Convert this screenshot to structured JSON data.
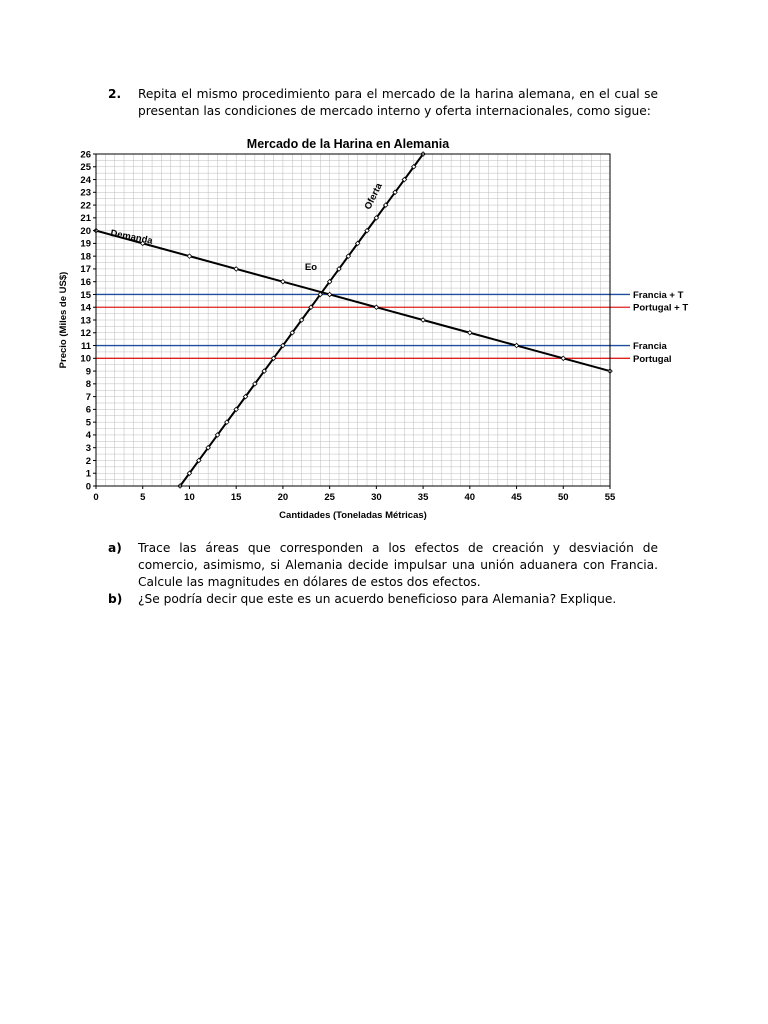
{
  "question2": {
    "number": "2.",
    "text": "Repita el mismo procedimiento para el mercado de la harina alemana, en el cual se presentan las condiciones de mercado interno y oferta internacionales, como sigue:"
  },
  "chart_data": {
    "type": "line",
    "title": "Mercado de la Harina en Alemania",
    "xlabel": "Cantidades (Toneladas Métricas)",
    "ylabel": "Precio (Miles de US$)",
    "xlim": [
      0,
      55
    ],
    "ylim": [
      0,
      26
    ],
    "x_ticks": [
      0,
      5,
      10,
      15,
      20,
      25,
      30,
      35,
      40,
      45,
      50,
      55
    ],
    "y_ticks": [
      0,
      1,
      2,
      3,
      4,
      5,
      6,
      7,
      8,
      9,
      10,
      11,
      12,
      13,
      14,
      15,
      16,
      17,
      18,
      19,
      20,
      21,
      22,
      23,
      24,
      25,
      26
    ],
    "grid": true,
    "series": [
      {
        "name": "Demanda",
        "color": "#000000",
        "points": [
          [
            0,
            20
          ],
          [
            5,
            19
          ],
          [
            10,
            18
          ],
          [
            15,
            17
          ],
          [
            20,
            16
          ],
          [
            25,
            15
          ],
          [
            30,
            14
          ],
          [
            35,
            13
          ],
          [
            40,
            12
          ],
          [
            45,
            11
          ],
          [
            50,
            10
          ],
          [
            55,
            9
          ]
        ]
      },
      {
        "name": "Oferta",
        "color": "#000000",
        "points": [
          [
            9,
            0
          ],
          [
            10,
            1
          ],
          [
            11,
            2
          ],
          [
            12,
            3
          ],
          [
            13,
            4
          ],
          [
            14,
            5
          ],
          [
            15,
            6
          ],
          [
            16,
            7
          ],
          [
            17,
            8
          ],
          [
            18,
            9
          ],
          [
            19,
            10
          ],
          [
            20,
            11
          ],
          [
            21,
            12
          ],
          [
            22,
            13
          ],
          [
            23,
            14
          ],
          [
            24,
            15
          ],
          [
            25,
            16
          ],
          [
            26,
            17
          ],
          [
            27,
            18
          ],
          [
            28,
            19
          ],
          [
            29,
            20
          ],
          [
            30,
            21
          ],
          [
            31,
            22
          ],
          [
            32,
            23
          ],
          [
            33,
            24
          ],
          [
            34,
            25
          ],
          [
            35,
            26
          ]
        ]
      }
    ],
    "price_lines": [
      {
        "label": "Francia + T",
        "y": 15,
        "color": "#1f4e9c"
      },
      {
        "label": "Portugal + T",
        "y": 14,
        "color": "#e0201c"
      },
      {
        "label": "Francia",
        "y": 11,
        "color": "#1f4e9c"
      },
      {
        "label": "Portugal",
        "y": 10,
        "color": "#e0201c"
      }
    ],
    "annotations": [
      {
        "text": "Eo",
        "x": 23,
        "y": 16.9
      }
    ]
  },
  "part_a": {
    "label": "a)",
    "text": "Trace las áreas que corresponden a los efectos de creación y desviación de comercio, asimismo, si Alemania decide impulsar una unión aduanera con Francia. Calcule las magnitudes en dólares de estos dos efectos."
  },
  "part_b": {
    "label": "b)",
    "text": "¿Se podría decir que este es un acuerdo beneficioso para Alemania? Explique."
  }
}
